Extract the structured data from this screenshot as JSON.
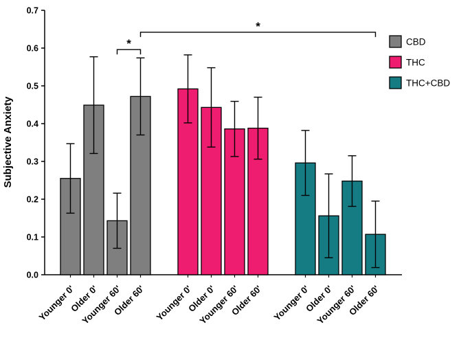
{
  "figure": {
    "background": "#ffffff",
    "axis_color": "#000000"
  },
  "chart_data": {
    "type": "bar",
    "title": "",
    "xlabel": "",
    "ylabel": "Subjective Anxiety",
    "ylim": [
      0.0,
      0.7
    ],
    "ytick_step": 0.1,
    "grid": false,
    "legend_position": "top-right",
    "categories": [
      "Younger 0'",
      "Older 0'",
      "Younger 60'",
      "Older 60'"
    ],
    "series": [
      {
        "name": "CBD",
        "color": "#7f7f7f",
        "values": [
          0.255,
          0.449,
          0.143,
          0.472
        ],
        "errors": [
          0.092,
          0.128,
          0.073,
          0.102
        ]
      },
      {
        "name": "THC",
        "color": "#ee1d6f",
        "values": [
          0.492,
          0.443,
          0.386,
          0.388
        ],
        "errors": [
          0.09,
          0.105,
          0.073,
          0.082
        ]
      },
      {
        "name": "THC+CBD",
        "color": "#167c84",
        "values": [
          0.296,
          0.156,
          0.248,
          0.107
        ],
        "errors": [
          0.086,
          0.111,
          0.067,
          0.088
        ]
      }
    ],
    "significance": [
      {
        "from": {
          "series": 0,
          "bar": 2
        },
        "to": {
          "series": 0,
          "bar": 3
        },
        "y": 0.596,
        "label": "*"
      },
      {
        "from": {
          "series": 0,
          "bar": 3
        },
        "to": {
          "series": 2,
          "bar": 3
        },
        "y": 0.642,
        "label": "*"
      }
    ]
  }
}
